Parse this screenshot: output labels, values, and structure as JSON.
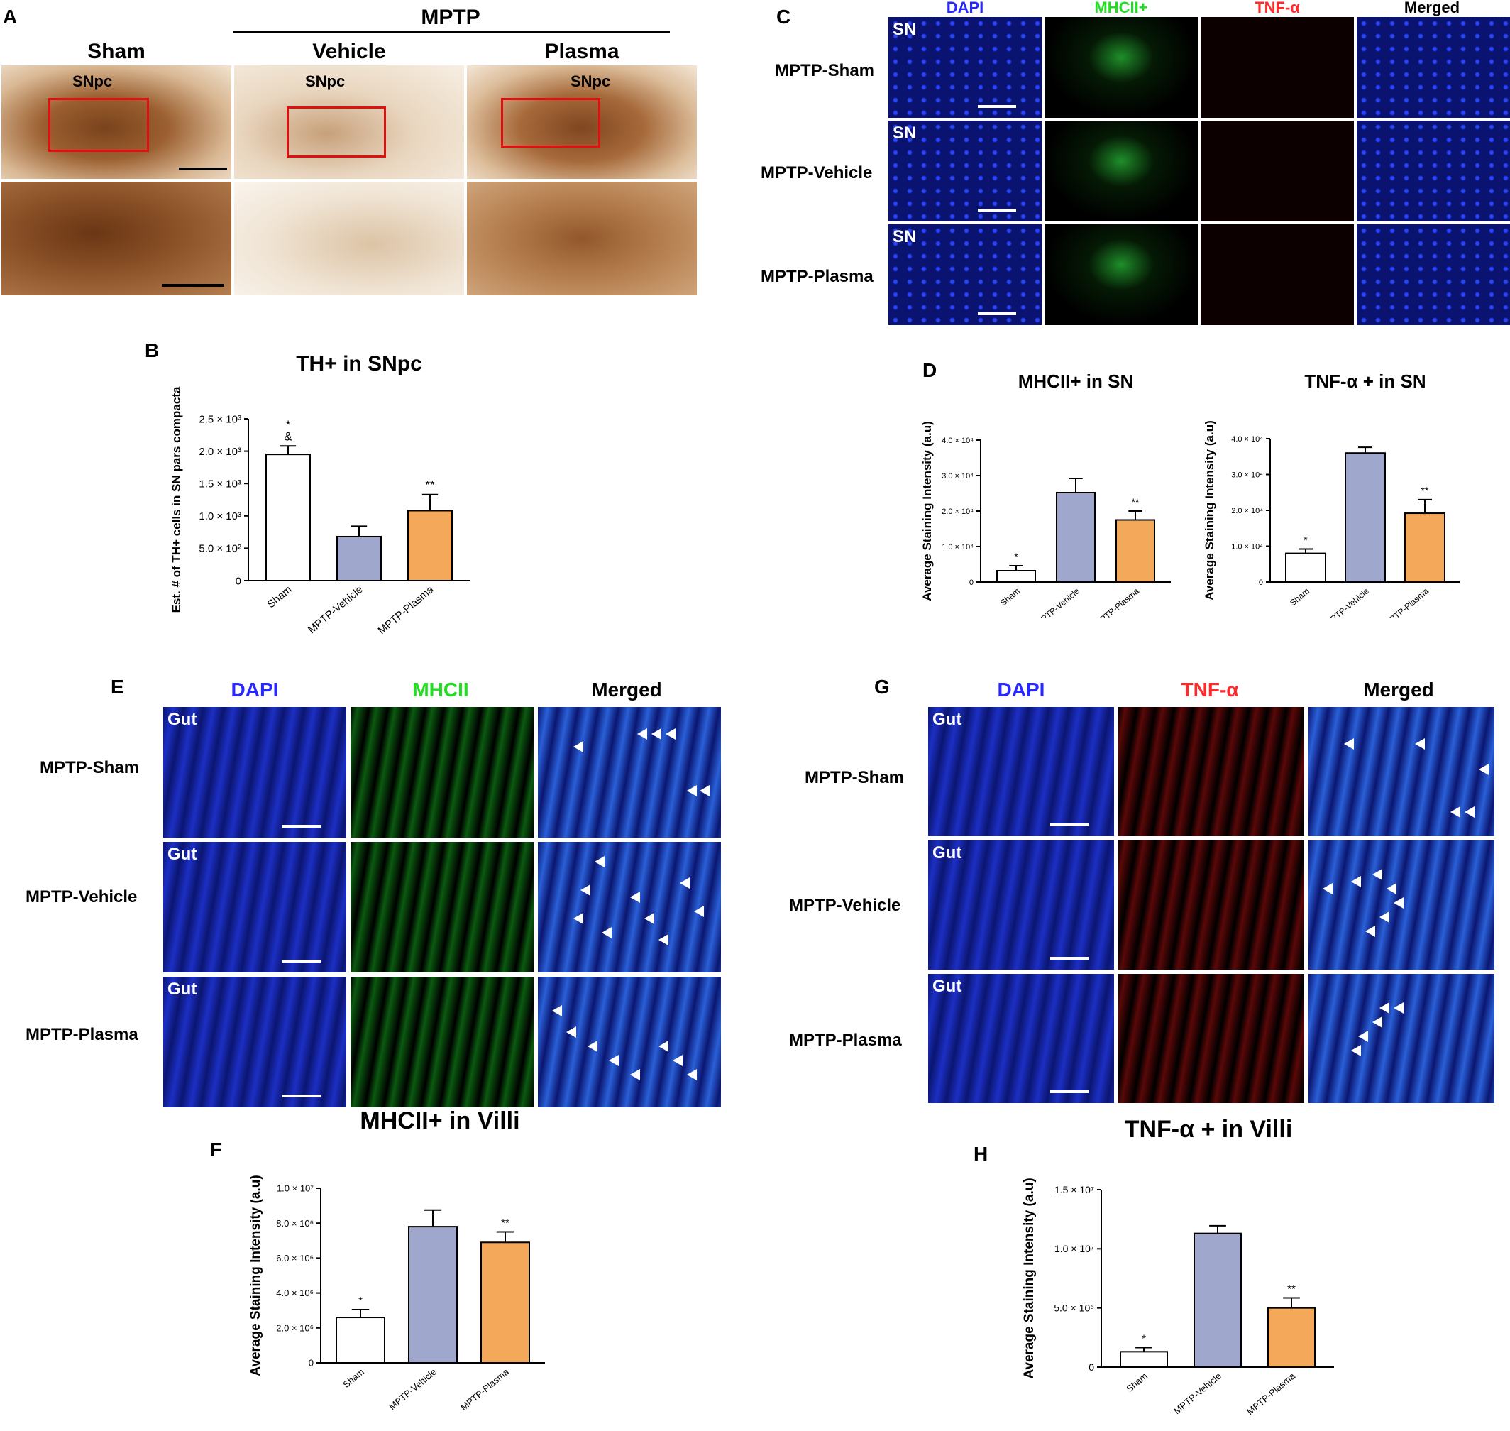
{
  "panel_letters": {
    "a": "A",
    "b": "B",
    "c": "C",
    "d": "D",
    "e": "E",
    "f": "F",
    "g": "G",
    "h": "H"
  },
  "panelA": {
    "mptp": "MPTP",
    "col_sham": "Sham",
    "col_vehicle": "Vehicle",
    "col_plasma": "Plasma",
    "snpc": "SNpc"
  },
  "panelC": {
    "columns": [
      "DAPI",
      "MHCII+",
      "TNF-α",
      "Merged"
    ],
    "column_colors": [
      "#2727ff",
      "#22dd22",
      "#ff2a2a",
      "#000000"
    ],
    "rows": [
      "MPTP-Sham",
      "MPTP-Vehicle",
      "MPTP-Plasma"
    ],
    "tag": "SN"
  },
  "panelE": {
    "columns": [
      "DAPI",
      "MHCII",
      "Merged"
    ],
    "column_colors": [
      "#2727ff",
      "#22dd22",
      "#000000"
    ],
    "rows": [
      "MPTP-Sham",
      "MPTP-Vehicle",
      "MPTP-Plasma"
    ],
    "tag": "Gut",
    "caption": "MHCII+ in Villi"
  },
  "panelG": {
    "columns": [
      "DAPI",
      "TNF-α",
      "Merged"
    ],
    "column_colors": [
      "#2727ff",
      "#ff2a2a",
      "#000000"
    ],
    "rows": [
      "MPTP-Sham",
      "MPTP-Vehicle",
      "MPTP-Plasma"
    ],
    "tag": "Gut",
    "caption": "TNF-α + in Villi"
  },
  "colors": {
    "sham": "#ffffff",
    "vehicle": "#9fa8cc",
    "plasma": "#f4a85a",
    "dapi_bg": "#1c2aa8",
    "th_stain": "#8a4e22"
  },
  "chart_data": [
    {
      "id": "B",
      "type": "bar",
      "title": "TH+ in  SNpc",
      "ylabel": "Est. # of TH+ cells in SN pars compacta",
      "categories": [
        "Sham",
        "MPTP-Vehicle",
        "MPTP-Plasma"
      ],
      "values": [
        1950,
        680,
        1080
      ],
      "errors": [
        130,
        160,
        250
      ],
      "ylim": [
        0,
        2500
      ],
      "yticks": [
        0,
        500,
        1000,
        1500,
        2000,
        2500
      ],
      "ytick_labels": [
        "0",
        "5.0 × 10²",
        "1.0 × 10³",
        "1.5 × 10³",
        "2.0 × 10³",
        "2.5 × 10³"
      ],
      "annotations": [
        "*\n&",
        "",
        "**"
      ]
    },
    {
      "id": "D1",
      "type": "bar",
      "title": "MHCII+ in SN",
      "ylabel": "Average Staining Intensity (a.u)",
      "categories": [
        "Sham",
        "MPTP-Vehicle",
        "MPTP-Plasma"
      ],
      "values": [
        3200,
        25200,
        17500
      ],
      "errors": [
        1400,
        4000,
        2500
      ],
      "ylim": [
        0,
        40000
      ],
      "yticks": [
        0,
        10000,
        20000,
        30000,
        40000
      ],
      "ytick_labels": [
        "0",
        "1.0 × 10⁴",
        "2.0 × 10⁴",
        "3.0 × 10⁴",
        "4.0 × 10⁴"
      ],
      "annotations": [
        "*",
        "",
        "**"
      ]
    },
    {
      "id": "D2",
      "type": "bar",
      "title": "TNF-α + in SN",
      "ylabel": "Average Staining Intensity (a.u)",
      "categories": [
        "Sham",
        "MPTP-Vehicle",
        "MPTP-Plasma"
      ],
      "values": [
        8000,
        36000,
        19200
      ],
      "errors": [
        1200,
        1600,
        3800
      ],
      "ylim": [
        0,
        40000
      ],
      "yticks": [
        0,
        10000,
        20000,
        30000,
        40000
      ],
      "ytick_labels": [
        "0",
        "1.0 × 10⁴",
        "2.0 × 10⁴",
        "3.0 × 10⁴",
        "4.0 × 10⁴"
      ],
      "annotations": [
        "*",
        "",
        "**"
      ]
    },
    {
      "id": "F",
      "type": "bar",
      "title": "",
      "ylabel": "Average Staining Intensity (a.u)",
      "categories": [
        "Sham",
        "MPTP-Vehicle",
        "MPTP-Plasma"
      ],
      "values": [
        2600000,
        7800000,
        6900000
      ],
      "errors": [
        450000,
        950000,
        600000
      ],
      "ylim": [
        0,
        10000000
      ],
      "yticks": [
        0,
        2000000,
        4000000,
        6000000,
        8000000,
        10000000
      ],
      "ytick_labels": [
        "0",
        "2.0 × 10⁶",
        "4.0 × 10⁶",
        "6.0 × 10⁶",
        "8.0 × 10⁶",
        "1.0 × 10⁷"
      ],
      "annotations": [
        "*",
        "",
        "**"
      ]
    },
    {
      "id": "H",
      "type": "bar",
      "title": "",
      "ylabel": "Average Staining Intensity (a.u)",
      "categories": [
        "Sham",
        "MPTP-Vehicle",
        "MPTP-Plasma"
      ],
      "values": [
        1300000,
        11300000,
        5000000
      ],
      "errors": [
        350000,
        650000,
        850000
      ],
      "ylim": [
        0,
        15000000
      ],
      "yticks": [
        0,
        5000000,
        10000000,
        15000000
      ],
      "ytick_labels": [
        "0",
        "5.0 × 10⁶",
        "1.0 × 10⁷",
        "1.5 × 10⁷"
      ],
      "annotations": [
        "*",
        "",
        "**"
      ]
    }
  ]
}
